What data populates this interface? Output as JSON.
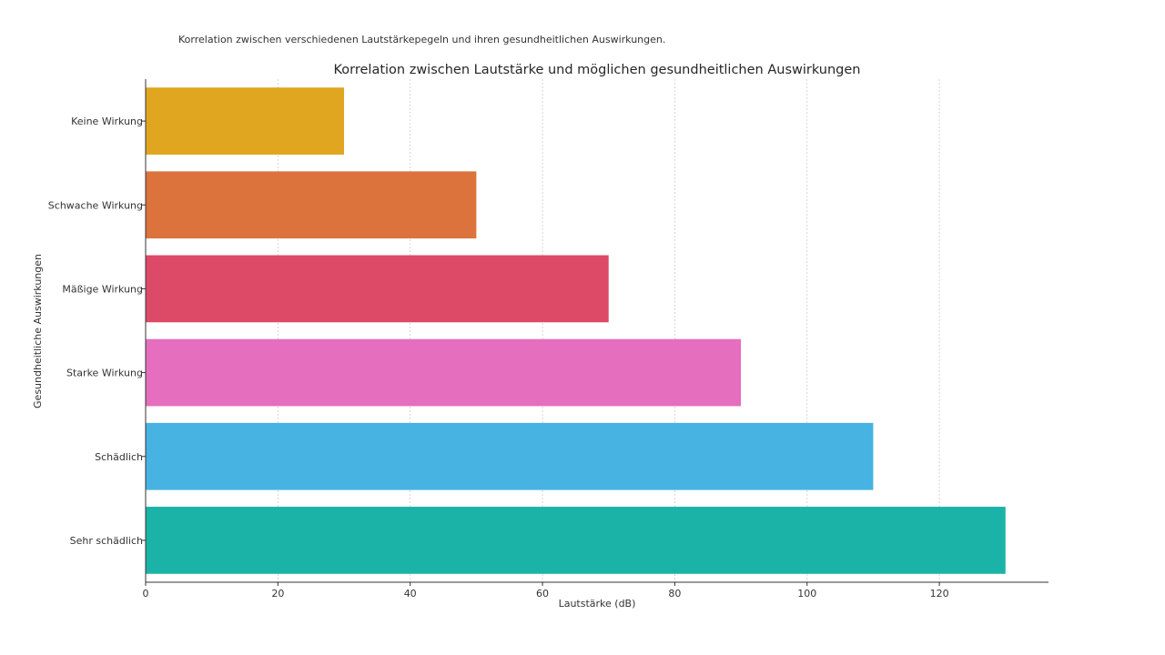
{
  "caption": "Korrelation zwischen verschiedenen Lautstärkepegeln und ihren gesundheitlichen Auswirkungen.",
  "chart_data": {
    "type": "bar",
    "orientation": "horizontal",
    "title": "Korrelation zwischen Lautstärke und möglichen gesundheitlichen Auswirkungen",
    "xlabel": "Lautstärke (dB)",
    "ylabel": "Gesundheitliche Auswirkungen",
    "categories": [
      "Keine Wirkung",
      "Schwache Wirkung",
      "Mäßige Wirkung",
      "Starke Wirkung",
      "Schädlich",
      "Sehr schädlich"
    ],
    "values": [
      30,
      50,
      70,
      90,
      110,
      130
    ],
    "colors": [
      "#E1A61F",
      "#DC733D",
      "#DD4A68",
      "#E56EBE",
      "#46B3E3",
      "#1BB3A8"
    ],
    "xlim": [
      0,
      136.5
    ],
    "xticks": [
      0,
      20,
      40,
      60,
      80,
      100,
      120
    ],
    "grid": "vertical-dashed",
    "legend": "none"
  }
}
